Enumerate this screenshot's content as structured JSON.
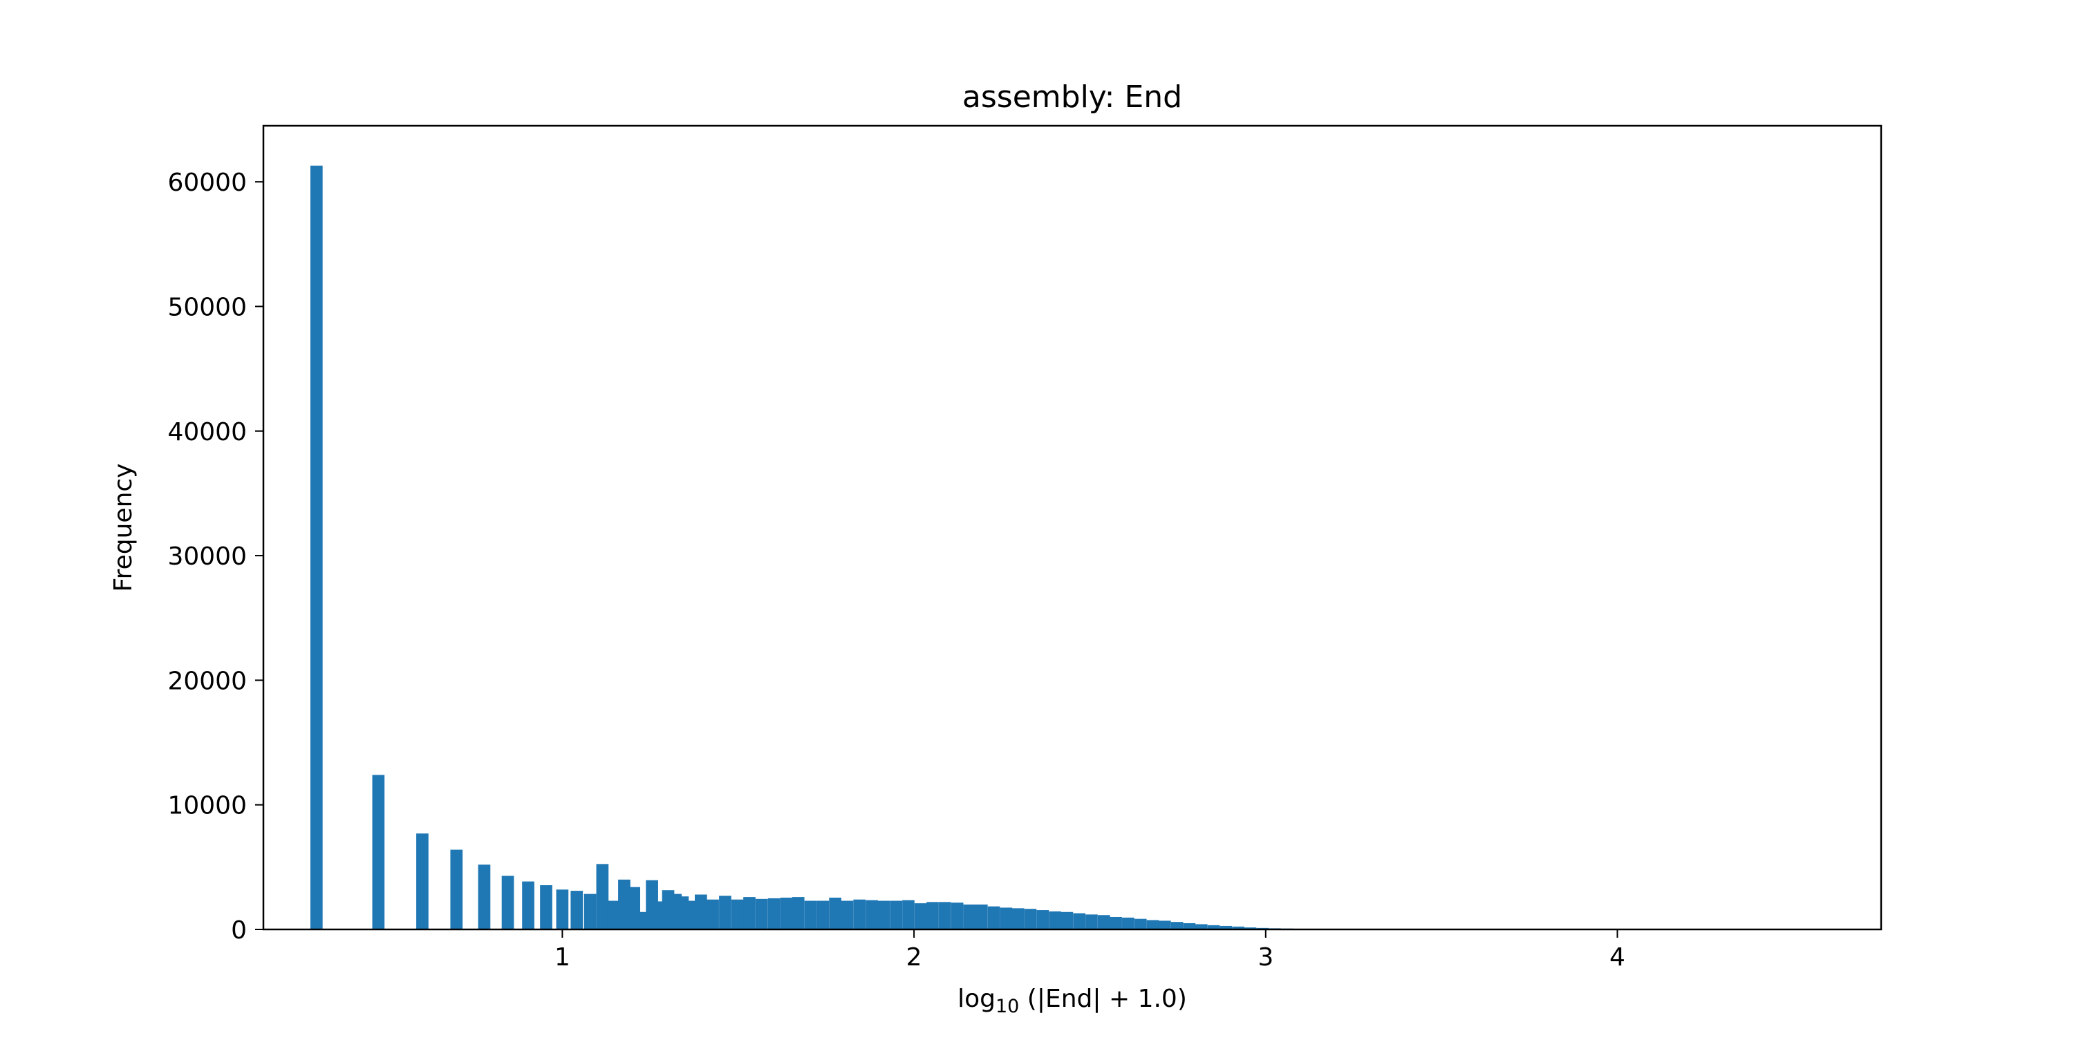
{
  "chart_data": {
    "type": "bar",
    "title": "assembly: End",
    "xlabel_parts": {
      "prefix": "log",
      "sub": "10",
      "suffix": " (|End| + 1.0)"
    },
    "ylabel": "Frequency",
    "bar_color": "#1f77b4",
    "xlim": [
      0.15,
      4.75
    ],
    "ylim": [
      0,
      64500
    ],
    "xticks": [
      1,
      2,
      3,
      4
    ],
    "xtick_labels": [
      "1",
      "2",
      "3",
      "4"
    ],
    "yticks": [
      0,
      10000,
      20000,
      30000,
      40000,
      50000,
      60000
    ],
    "ytick_labels": [
      "0",
      "10000",
      "20000",
      "30000",
      "40000",
      "50000",
      "60000"
    ],
    "bin_width": 0.03475,
    "x": [
      0.301,
      0.477,
      0.602,
      0.699,
      0.778,
      0.845,
      0.903,
      0.954,
      1.0,
      1.041,
      1.079,
      1.114,
      1.146,
      1.176,
      1.204,
      1.23,
      1.255,
      1.279,
      1.301,
      1.322,
      1.342,
      1.362,
      1.394,
      1.428,
      1.463,
      1.498,
      1.532,
      1.567,
      1.602,
      1.637,
      1.671,
      1.706,
      1.741,
      1.776,
      1.81,
      1.845,
      1.88,
      1.914,
      1.949,
      1.984,
      2.019,
      2.053,
      2.088,
      2.123,
      2.158,
      2.192,
      2.227,
      2.262,
      2.296,
      2.331,
      2.366,
      2.401,
      2.435,
      2.47,
      2.505,
      2.54,
      2.574,
      2.609,
      2.644,
      2.679,
      2.713,
      2.748,
      2.783,
      2.817,
      2.852,
      2.887,
      2.922,
      2.956,
      2.991,
      3.026,
      3.061,
      3.095,
      3.13,
      3.165,
      3.199,
      3.234,
      3.269,
      3.304,
      3.338,
      3.373,
      3.408,
      3.443,
      3.477,
      3.512
    ],
    "values": [
      61300,
      12400,
      7700,
      6400,
      5200,
      4300,
      3850,
      3550,
      3200,
      3100,
      2850,
      5250,
      2300,
      4000,
      3400,
      1400,
      3950,
      2250,
      3150,
      2850,
      2650,
      2300,
      2800,
      2400,
      2700,
      2400,
      2600,
      2450,
      2500,
      2550,
      2600,
      2300,
      2300,
      2550,
      2300,
      2400,
      2350,
      2300,
      2300,
      2350,
      2100,
      2200,
      2200,
      2150,
      2000,
      2000,
      1850,
      1750,
      1700,
      1650,
      1550,
      1450,
      1400,
      1300,
      1200,
      1150,
      1000,
      950,
      850,
      750,
      700,
      600,
      500,
      420,
      340,
      280,
      230,
      160,
      120,
      90,
      70,
      50,
      40,
      30,
      25,
      20,
      15,
      10,
      8,
      6,
      5,
      4,
      3,
      2
    ]
  }
}
